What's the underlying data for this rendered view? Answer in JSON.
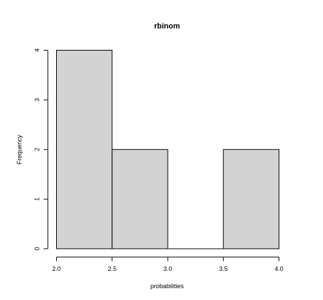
{
  "chart_data": {
    "type": "bar",
    "title": "rbinom",
    "xlabel": "probabilities",
    "ylabel": "Frequency",
    "bins": [
      {
        "start": 2.0,
        "end": 2.5,
        "value": 4
      },
      {
        "start": 2.5,
        "end": 3.0,
        "value": 2
      },
      {
        "start": 3.0,
        "end": 3.5,
        "value": 0
      },
      {
        "start": 3.5,
        "end": 4.0,
        "value": 2
      }
    ],
    "xlim": [
      2.0,
      4.0
    ],
    "ylim": [
      0,
      4
    ],
    "x_ticks": [
      "2.0",
      "2.5",
      "3.0",
      "3.5",
      "4.0"
    ],
    "y_ticks": [
      "0",
      "1",
      "2",
      "3",
      "4"
    ],
    "grid": false,
    "bar_fill": "#d3d3d3",
    "bar_stroke": "#000000"
  }
}
